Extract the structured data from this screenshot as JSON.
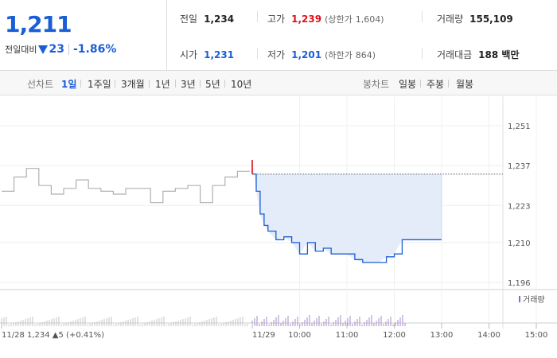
{
  "price": {
    "current": "1,211",
    "change_label": "전일대비",
    "change": "23",
    "change_pct": "-1.86%"
  },
  "stats": {
    "prev_label": "전일",
    "prev": "1,234",
    "high_label": "고가",
    "high": "1,239",
    "upper_label": "(상한가",
    "upper": "1,604)",
    "volume_label": "거래량",
    "volume": "155,109",
    "open_label": "시가",
    "open": "1,231",
    "low_label": "저가",
    "low": "1,201",
    "lower_label": "(하한가",
    "lower": "864)",
    "amount_label": "거래대금",
    "amount": "188 백만"
  },
  "toolbar": {
    "line_label": "선차트",
    "line_items": [
      "1일",
      "1주일",
      "3개월",
      "1년",
      "3년",
      "5년",
      "10년"
    ],
    "selected": "1일",
    "candle_label": "봉차트",
    "candle_items": [
      "일봉",
      "주봉",
      "월봉"
    ]
  },
  "colors": {
    "up": "#e0101a",
    "down": "#1a5ed6",
    "prev_day": "#b0b0b0",
    "fill": "#e4ecf9"
  },
  "chart_data": {
    "type": "line",
    "y_ticks": [
      "1,251",
      "1,237",
      "1,223",
      "1,210",
      "1,196"
    ],
    "ylim": [
      1196,
      1251
    ],
    "prev_close_ref": 1234,
    "x_labels": [
      "11/28",
      "11/29",
      "10:00",
      "11:00",
      "12:00",
      "13:00",
      "14:00",
      "15:00"
    ],
    "prev_day_footer": {
      "price": "1,234",
      "arrow": "▲",
      "change": "5",
      "pct": "(+0.41%)"
    },
    "volume_legend": "거래량",
    "series": [
      {
        "name": "11/28",
        "x": [
          0,
          0.05,
          0.1,
          0.15,
          0.2,
          0.25,
          0.3,
          0.35,
          0.4,
          0.45,
          0.5,
          0.55,
          0.6,
          0.65,
          0.7,
          0.75,
          0.8,
          0.85,
          0.9,
          0.95,
          1.0
        ],
        "values": [
          1228,
          1233,
          1236,
          1230,
          1227,
          1229,
          1232,
          1229,
          1228,
          1227,
          1229,
          1229,
          1224,
          1228,
          1229,
          1230,
          1224,
          1230,
          1233,
          1235,
          1235
        ]
      },
      {
        "name": "11/29",
        "x": [
          "09:00",
          "09:05",
          "09:10",
          "09:15",
          "09:20",
          "09:30",
          "09:40",
          "09:50",
          "10:00",
          "10:10",
          "10:20",
          "10:30",
          "10:40",
          "10:50",
          "11:00",
          "11:10",
          "11:20",
          "11:30",
          "11:40",
          "11:50",
          "12:00",
          "12:10",
          "12:20",
          "12:30",
          "12:40",
          "12:50",
          "13:00"
        ],
        "values": [
          1239,
          1228,
          1220,
          1216,
          1214,
          1211,
          1212,
          1210,
          1206,
          1210,
          1207,
          1208,
          1206,
          1206,
          1206,
          1204,
          1203,
          1203,
          1203,
          1205,
          1206,
          1211,
          1211,
          1211,
          1211,
          1211,
          1211
        ]
      }
    ]
  }
}
